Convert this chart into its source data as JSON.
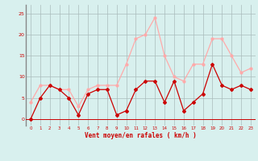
{
  "x": [
    0,
    1,
    2,
    3,
    4,
    5,
    6,
    7,
    8,
    9,
    10,
    11,
    12,
    13,
    14,
    15,
    16,
    17,
    18,
    19,
    20,
    21,
    22,
    23
  ],
  "wind_avg": [
    0,
    5,
    8,
    7,
    5,
    1,
    6,
    7,
    7,
    1,
    2,
    7,
    9,
    9,
    4,
    9,
    2,
    4,
    6,
    13,
    8,
    7,
    8,
    7
  ],
  "wind_gust": [
    4,
    8,
    8,
    7,
    7,
    3,
    7,
    8,
    8,
    8,
    13,
    19,
    20,
    24,
    15,
    10,
    9,
    13,
    13,
    19,
    19,
    15,
    11,
    12
  ],
  "color_avg": "#cc0000",
  "color_gust": "#ffaaaa",
  "bg_color": "#d8f0ee",
  "grid_color": "#aabbbb",
  "spine_color": "#888888",
  "xlabel": "Vent moyen/en rafales ( km/h )",
  "xlabel_color": "#cc0000",
  "yticks": [
    0,
    5,
    10,
    15,
    20,
    25
  ],
  "xticks": [
    0,
    1,
    2,
    3,
    4,
    5,
    6,
    7,
    8,
    9,
    10,
    11,
    12,
    13,
    14,
    15,
    16,
    17,
    18,
    19,
    20,
    21,
    22,
    23
  ],
  "ylim": [
    -1.5,
    27
  ],
  "xlim": [
    -0.5,
    23.5
  ]
}
